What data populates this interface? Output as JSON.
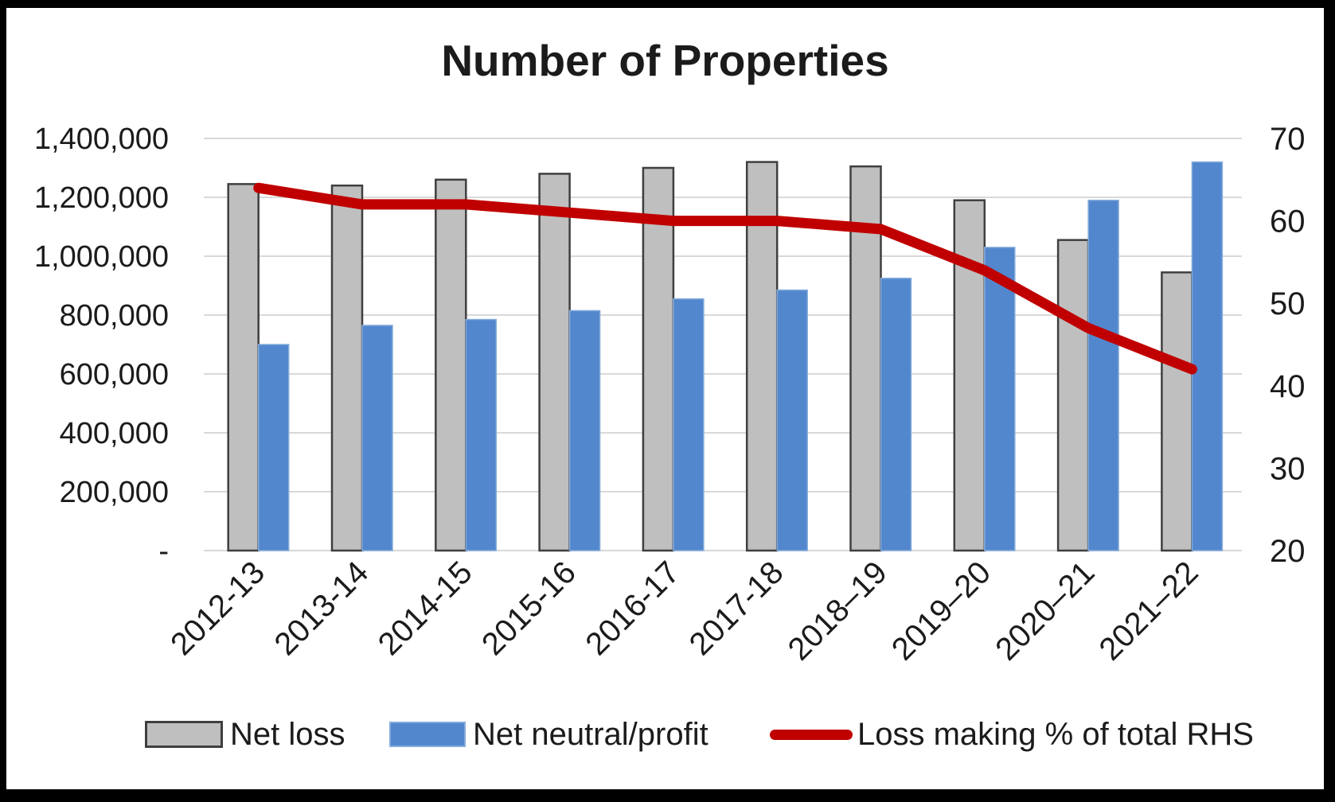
{
  "chart_data": {
    "type": "combo-bar-line",
    "title": "Number of Properties",
    "categories": [
      "2012-13",
      "2013-14",
      "2014-15",
      "2015-16",
      "2016-17",
      "2017-18",
      "2018–19",
      "2019–20",
      "2020–21",
      "2021–22"
    ],
    "series": [
      {
        "name": "Net loss",
        "type": "bar",
        "yaxis": "left",
        "fill": "#BFBFBF",
        "stroke": "#3F3F3F",
        "values": [
          1245000,
          1240000,
          1260000,
          1280000,
          1300000,
          1320000,
          1305000,
          1190000,
          1055000,
          945000
        ]
      },
      {
        "name": "Net neutral/profit",
        "type": "bar",
        "yaxis": "left",
        "fill": "#5287CD",
        "stroke": "#85ACDB",
        "values": [
          700000,
          765000,
          785000,
          815000,
          855000,
          885000,
          925000,
          1030000,
          1190000,
          1320000
        ]
      },
      {
        "name": "Loss making % of total RHS",
        "type": "line",
        "yaxis": "right",
        "stroke": "#C00000",
        "values": [
          64,
          62,
          62,
          61,
          60,
          60,
          59,
          54,
          47,
          42
        ]
      }
    ],
    "left_axis": {
      "min": 0,
      "max": 1400000,
      "step": 200000,
      "tick_labels_bottom_to_top": [
        "-",
        "200,000",
        "400,000",
        "600,000",
        "800,000",
        "1,000,000",
        "1,200,000",
        "1,400,000"
      ]
    },
    "right_axis": {
      "min": 20,
      "max": 70,
      "step": 10,
      "tick_labels_bottom_to_top": [
        "20",
        "30",
        "40",
        "50",
        "60",
        "70"
      ]
    },
    "grid": true,
    "gridline_color": "#D9D9D9",
    "text_color": "#1b1b1b",
    "background_color": "#FFFFFF",
    "frame_color": "#000000",
    "legend_position": "bottom"
  }
}
